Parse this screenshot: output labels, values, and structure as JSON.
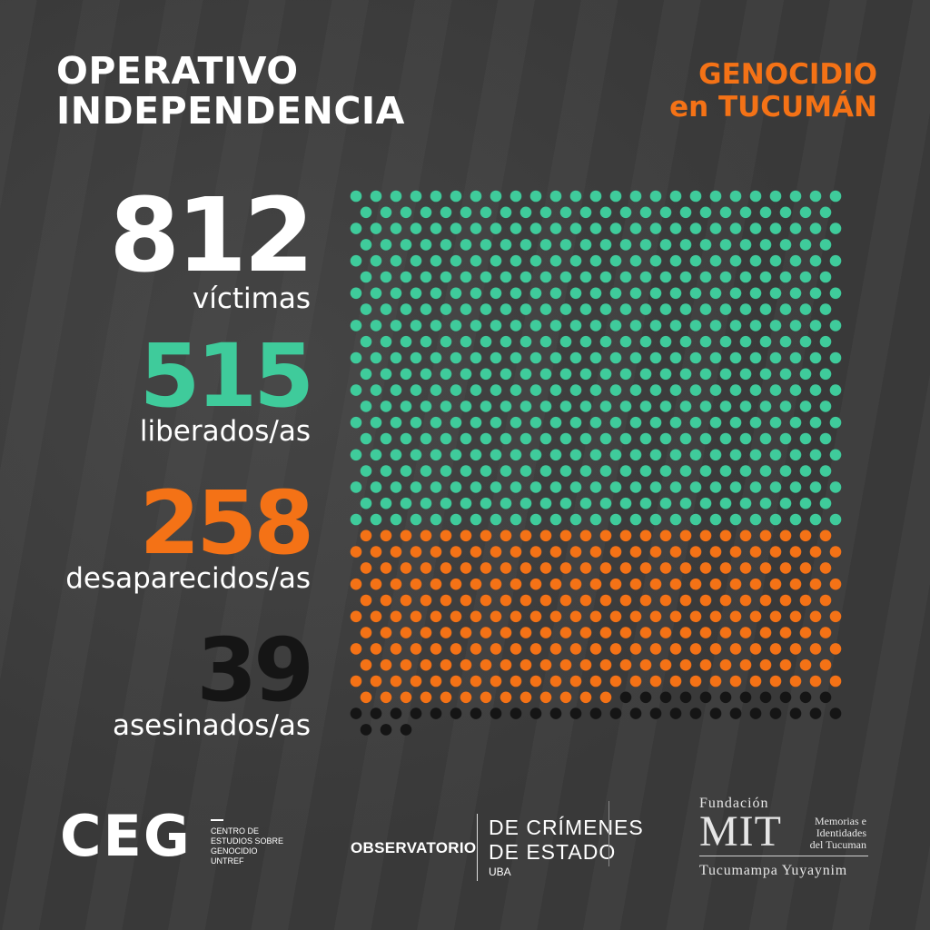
{
  "header": {
    "title_line1": "OPERATIVO",
    "title_line2": "INDEPENDENCIA",
    "subtitle_line1": "GENOCIDIO",
    "subtitle_line2": "en TUCUMÁN"
  },
  "stats": [
    {
      "value": "812",
      "label": "víctimas"
    },
    {
      "value": "515",
      "label": "liberados/as"
    },
    {
      "value": "258",
      "label": "desaparecidos/as"
    },
    {
      "value": "39",
      "label": "asesinados/as"
    }
  ],
  "colors": {
    "liberados": "#3fcb9b",
    "desaparecidos": "#f47216",
    "asesinados": "#151515",
    "background": "#3b3b3b"
  },
  "chart_data": {
    "type": "waffle",
    "total": 812,
    "series": [
      {
        "name": "liberados/as",
        "value": 515
      },
      {
        "name": "desaparecidos/as",
        "value": 258
      },
      {
        "name": "asesinados/as",
        "value": 39
      }
    ]
  },
  "footer": {
    "ceg_logo": "CEG",
    "ceg_lines": [
      "CENTRO DE",
      "ESTUDIOS SOBRE",
      "GENOCIDIO",
      "UNTREF"
    ],
    "observatorio": "OBSERVATORIO",
    "dce_line1": "DE CRÍMENES",
    "dce_line2": "DE ESTADO",
    "dce_uba": "UBA",
    "mit_fundacion": "Fundación",
    "mit_logo": "MIT",
    "mit_lines": [
      "Memorias e",
      "Identidades",
      "del Tucuman"
    ],
    "mit_tagline": "Tucumampa Yuyaynim"
  }
}
